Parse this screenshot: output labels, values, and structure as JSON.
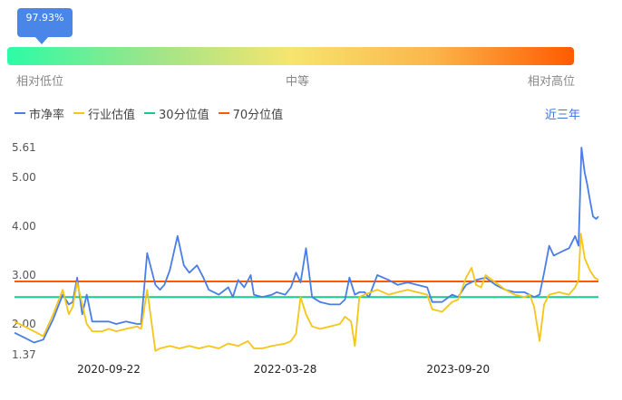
{
  "percentile": {
    "label": "97.93%",
    "value": 0.9793,
    "scale_labels": [
      "相对低位",
      "中等",
      "相对高位"
    ],
    "gradient_colors": [
      "#2dfba6",
      "#f6e56e",
      "#ff5a00"
    ]
  },
  "period_tab": "近三年",
  "chart_data": {
    "type": "line",
    "legend_placement": "top-left",
    "grid": false,
    "title": "",
    "xlabel": "",
    "ylabel": "",
    "ylim": [
      1.37,
      5.61
    ],
    "y_ticks": [
      "5.61",
      "5.00",
      "4.00",
      "3.00",
      "2.00",
      "1.37"
    ],
    "x_ticks": [
      "2020-09-22",
      "2022-03-28",
      "2023-09-20"
    ],
    "x_range": [
      "2019-12-02",
      "2024-12-02"
    ],
    "series": [
      {
        "name": "市净率",
        "color": "#4a7ee6",
        "points": [
          [
            "2019-12-02",
            1.82
          ],
          [
            "2020-01-02",
            1.72
          ],
          [
            "2020-02-01",
            1.62
          ],
          [
            "2020-03-01",
            1.68
          ],
          [
            "2020-04-01",
            2.1
          ],
          [
            "2020-05-01",
            2.6
          ],
          [
            "2020-05-20",
            2.4
          ],
          [
            "2020-06-01",
            2.45
          ],
          [
            "2020-06-15",
            2.95
          ],
          [
            "2020-07-01",
            2.2
          ],
          [
            "2020-07-15",
            2.6
          ],
          [
            "2020-08-01",
            2.05
          ],
          [
            "2020-09-01",
            2.05
          ],
          [
            "2020-09-22",
            2.05
          ],
          [
            "2020-10-15",
            2.0
          ],
          [
            "2020-11-15",
            2.05
          ],
          [
            "2020-12-20",
            2.0
          ],
          [
            "2021-01-01",
            2.0
          ],
          [
            "2021-01-20",
            3.45
          ],
          [
            "2021-02-15",
            2.8
          ],
          [
            "2021-03-01",
            2.7
          ],
          [
            "2021-03-15",
            2.8
          ],
          [
            "2021-04-01",
            3.1
          ],
          [
            "2021-04-25",
            3.8
          ],
          [
            "2021-05-15",
            3.2
          ],
          [
            "2021-06-01",
            3.05
          ],
          [
            "2021-06-25",
            3.2
          ],
          [
            "2021-07-15",
            2.95
          ],
          [
            "2021-08-01",
            2.7
          ],
          [
            "2021-09-01",
            2.6
          ],
          [
            "2021-10-01",
            2.75
          ],
          [
            "2021-10-15",
            2.55
          ],
          [
            "2021-11-01",
            2.9
          ],
          [
            "2021-11-20",
            2.75
          ],
          [
            "2021-12-10",
            3.0
          ],
          [
            "2021-12-20",
            2.6
          ],
          [
            "2022-01-15",
            2.55
          ],
          [
            "2022-02-15",
            2.6
          ],
          [
            "2022-03-01",
            2.65
          ],
          [
            "2022-03-28",
            2.6
          ],
          [
            "2022-04-15",
            2.75
          ],
          [
            "2022-05-01",
            3.05
          ],
          [
            "2022-05-15",
            2.85
          ],
          [
            "2022-06-01",
            3.55
          ],
          [
            "2022-06-20",
            2.55
          ],
          [
            "2022-07-15",
            2.45
          ],
          [
            "2022-08-15",
            2.4
          ],
          [
            "2022-09-15",
            2.4
          ],
          [
            "2022-10-01",
            2.5
          ],
          [
            "2022-10-15",
            2.95
          ],
          [
            "2022-11-01",
            2.6
          ],
          [
            "2022-11-15",
            2.65
          ],
          [
            "2022-12-01",
            2.65
          ],
          [
            "2022-12-15",
            2.55
          ],
          [
            "2023-01-10",
            3.0
          ],
          [
            "2023-02-15",
            2.9
          ],
          [
            "2023-03-15",
            2.8
          ],
          [
            "2023-04-15",
            2.85
          ],
          [
            "2023-05-15",
            2.8
          ],
          [
            "2023-06-15",
            2.75
          ],
          [
            "2023-07-01",
            2.45
          ],
          [
            "2023-08-01",
            2.45
          ],
          [
            "2023-09-01",
            2.6
          ],
          [
            "2023-09-20",
            2.55
          ],
          [
            "2023-10-15",
            2.8
          ],
          [
            "2023-11-15",
            2.9
          ],
          [
            "2023-12-15",
            2.95
          ],
          [
            "2024-01-15",
            2.8
          ],
          [
            "2024-02-15",
            2.7
          ],
          [
            "2024-03-15",
            2.65
          ],
          [
            "2024-04-15",
            2.65
          ],
          [
            "2024-05-15",
            2.55
          ],
          [
            "2024-06-01",
            2.6
          ],
          [
            "2024-06-15",
            3.05
          ],
          [
            "2024-07-01",
            3.6
          ],
          [
            "2024-07-15",
            3.4
          ],
          [
            "2024-08-15",
            3.5
          ],
          [
            "2024-09-01",
            3.55
          ],
          [
            "2024-09-20",
            3.8
          ],
          [
            "2024-10-01",
            3.6
          ],
          [
            "2024-10-10",
            5.61
          ],
          [
            "2024-10-20",
            5.1
          ],
          [
            "2024-10-28",
            4.85
          ],
          [
            "2024-11-05",
            4.55
          ],
          [
            "2024-11-15",
            4.2
          ],
          [
            "2024-11-25",
            4.15
          ],
          [
            "2024-12-02",
            4.2
          ]
        ]
      },
      {
        "name": "行业估值",
        "color": "#f5c518",
        "points": [
          [
            "2019-12-02",
            2.05
          ],
          [
            "2020-01-02",
            1.95
          ],
          [
            "2020-02-01",
            1.85
          ],
          [
            "2020-03-01",
            1.75
          ],
          [
            "2020-04-01",
            2.2
          ],
          [
            "2020-05-01",
            2.7
          ],
          [
            "2020-05-20",
            2.2
          ],
          [
            "2020-06-01",
            2.35
          ],
          [
            "2020-06-15",
            2.85
          ],
          [
            "2020-07-01",
            2.4
          ],
          [
            "2020-07-15",
            2.0
          ],
          [
            "2020-08-01",
            1.85
          ],
          [
            "2020-09-01",
            1.85
          ],
          [
            "2020-09-22",
            1.9
          ],
          [
            "2020-10-15",
            1.85
          ],
          [
            "2020-11-15",
            1.9
          ],
          [
            "2020-12-20",
            1.95
          ],
          [
            "2021-01-01",
            1.9
          ],
          [
            "2021-01-20",
            2.7
          ],
          [
            "2021-02-15",
            1.45
          ],
          [
            "2021-03-01",
            1.5
          ],
          [
            "2021-04-01",
            1.55
          ],
          [
            "2021-05-01",
            1.5
          ],
          [
            "2021-06-01",
            1.55
          ],
          [
            "2021-07-01",
            1.5
          ],
          [
            "2021-08-01",
            1.55
          ],
          [
            "2021-09-01",
            1.5
          ],
          [
            "2021-10-01",
            1.6
          ],
          [
            "2021-11-01",
            1.55
          ],
          [
            "2021-12-01",
            1.65
          ],
          [
            "2021-12-20",
            1.5
          ],
          [
            "2022-01-15",
            1.5
          ],
          [
            "2022-02-15",
            1.55
          ],
          [
            "2022-03-28",
            1.6
          ],
          [
            "2022-04-15",
            1.65
          ],
          [
            "2022-05-01",
            1.8
          ],
          [
            "2022-05-15",
            2.55
          ],
          [
            "2022-06-01",
            2.2
          ],
          [
            "2022-06-20",
            1.95
          ],
          [
            "2022-07-15",
            1.9
          ],
          [
            "2022-08-15",
            1.95
          ],
          [
            "2022-09-15",
            2.0
          ],
          [
            "2022-10-01",
            2.15
          ],
          [
            "2022-10-20",
            2.05
          ],
          [
            "2022-11-01",
            1.55
          ],
          [
            "2022-11-15",
            2.55
          ],
          [
            "2022-12-01",
            2.6
          ],
          [
            "2023-01-10",
            2.7
          ],
          [
            "2023-02-15",
            2.6
          ],
          [
            "2023-03-15",
            2.65
          ],
          [
            "2023-04-15",
            2.7
          ],
          [
            "2023-05-15",
            2.65
          ],
          [
            "2023-06-15",
            2.6
          ],
          [
            "2023-07-01",
            2.3
          ],
          [
            "2023-08-01",
            2.25
          ],
          [
            "2023-09-01",
            2.45
          ],
          [
            "2023-09-20",
            2.5
          ],
          [
            "2023-10-15",
            2.95
          ],
          [
            "2023-11-01",
            3.15
          ],
          [
            "2023-11-15",
            2.8
          ],
          [
            "2023-12-01",
            2.75
          ],
          [
            "2023-12-15",
            3.0
          ],
          [
            "2024-01-15",
            2.85
          ],
          [
            "2024-02-15",
            2.7
          ],
          [
            "2024-03-15",
            2.6
          ],
          [
            "2024-04-15",
            2.55
          ],
          [
            "2024-05-01",
            2.6
          ],
          [
            "2024-05-15",
            2.35
          ],
          [
            "2024-06-01",
            1.65
          ],
          [
            "2024-06-15",
            2.4
          ],
          [
            "2024-07-01",
            2.6
          ],
          [
            "2024-08-01",
            2.65
          ],
          [
            "2024-09-01",
            2.6
          ],
          [
            "2024-09-20",
            2.75
          ],
          [
            "2024-10-01",
            2.9
          ],
          [
            "2024-10-08",
            3.85
          ],
          [
            "2024-10-20",
            3.35
          ],
          [
            "2024-11-05",
            3.1
          ],
          [
            "2024-11-20",
            2.95
          ],
          [
            "2024-12-02",
            2.9
          ]
        ]
      },
      {
        "name": "30分位值",
        "color": "#1ac98c",
        "value": 2.55
      },
      {
        "name": "70分位值",
        "color": "#ff5a00",
        "value": 2.87
      }
    ]
  }
}
